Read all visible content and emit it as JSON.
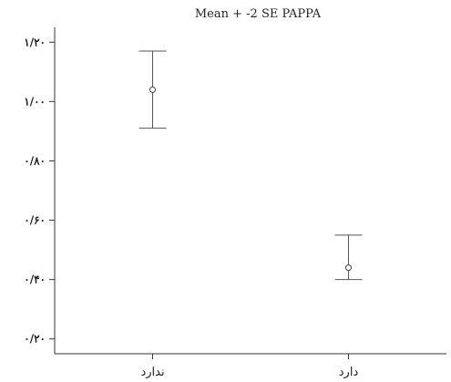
{
  "chart_data": {
    "type": "errorbar",
    "title": "Mean + -2 SE PAPPA",
    "xlabel": "",
    "ylabel": "",
    "categories": [
      "ندارد",
      "دارد"
    ],
    "series": [
      {
        "mean": [
          1.04,
          0.44
        ],
        "upper": [
          1.17,
          0.55
        ],
        "lower": [
          0.91,
          0.4
        ]
      }
    ],
    "ylim": [
      0.15,
      1.25
    ],
    "yticks": [
      0.2,
      0.4,
      0.6,
      0.8,
      1.0,
      1.2
    ],
    "ytick_labels": [
      "۰/۲۰",
      "۰/۴۰",
      "۰/۶۰",
      "۰/۸۰",
      "۱/۰۰",
      "۱/۲۰"
    ],
    "grid": false,
    "colors": {
      "axis": "#333333",
      "errorbar": "#555555"
    }
  }
}
